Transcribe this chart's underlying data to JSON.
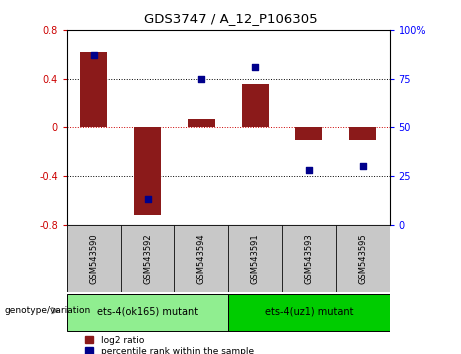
{
  "title": "GDS3747 / A_12_P106305",
  "samples": [
    "GSM543590",
    "GSM543592",
    "GSM543594",
    "GSM543591",
    "GSM543593",
    "GSM543595"
  ],
  "log2_ratio": [
    0.62,
    -0.72,
    0.07,
    0.36,
    -0.1,
    -0.1
  ],
  "percentile_rank": [
    87,
    13,
    75,
    81,
    28,
    30
  ],
  "bar_color": "#8B1A1A",
  "dot_color": "#00008B",
  "ylim_left": [
    -0.8,
    0.8
  ],
  "ylim_right": [
    0,
    100
  ],
  "yticks_left": [
    -0.8,
    -0.4,
    0,
    0.4,
    0.8
  ],
  "yticks_right": [
    0,
    25,
    50,
    75,
    100
  ],
  "groups": [
    {
      "label": "ets-4(ok165) mutant",
      "n": 3,
      "color": "#90EE90"
    },
    {
      "label": "ets-4(uz1) mutant",
      "n": 3,
      "color": "#00CC00"
    }
  ],
  "genotype_label": "genotype/variation",
  "legend_red_label": "log2 ratio",
  "legend_blue_label": "percentile rank within the sample",
  "bar_width": 0.5
}
